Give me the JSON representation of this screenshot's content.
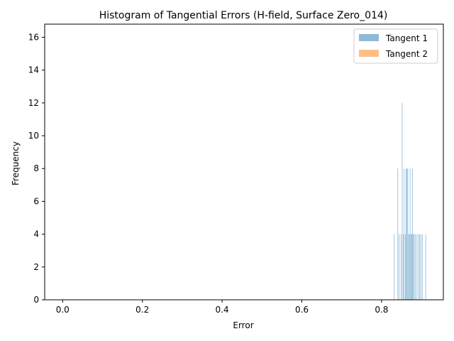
{
  "chart_data": {
    "type": "bar",
    "title": "Histogram of Tangential Errors (H-field, Surface Zero_014)",
    "xlabel": "Error",
    "ylabel": "Frequency",
    "xlim": [
      -0.045,
      0.955
    ],
    "ylim": [
      0,
      16.8
    ],
    "xticks": [
      "0.0",
      "0.2",
      "0.4",
      "0.6",
      "0.8"
    ],
    "yticks": [
      "0",
      "2",
      "4",
      "6",
      "8",
      "10",
      "12",
      "14",
      "16"
    ],
    "grid": false,
    "legend_position": "top-right",
    "bin_width": 0.0015,
    "series": [
      {
        "name": "Tangent 1",
        "color": "#1f77b4",
        "opacity": 0.5,
        "bins": [
          {
            "x": 0.831,
            "count": 4
          },
          {
            "x": 0.84,
            "count": 8
          },
          {
            "x": 0.843,
            "count": 4
          },
          {
            "x": 0.848,
            "count": 4
          },
          {
            "x": 0.851,
            "count": 12
          },
          {
            "x": 0.854,
            "count": 4
          },
          {
            "x": 0.856,
            "count": 8
          },
          {
            "x": 0.859,
            "count": 4
          },
          {
            "x": 0.861,
            "count": 8
          },
          {
            "x": 0.863,
            "count": 8
          },
          {
            "x": 0.865,
            "count": 8
          },
          {
            "x": 0.867,
            "count": 4
          },
          {
            "x": 0.869,
            "count": 4
          },
          {
            "x": 0.871,
            "count": 8
          },
          {
            "x": 0.873,
            "count": 4
          },
          {
            "x": 0.875,
            "count": 4
          },
          {
            "x": 0.877,
            "count": 8
          },
          {
            "x": 0.879,
            "count": 4
          },
          {
            "x": 0.881,
            "count": 4
          },
          {
            "x": 0.884,
            "count": 4
          },
          {
            "x": 0.888,
            "count": 4
          },
          {
            "x": 0.892,
            "count": 4
          },
          {
            "x": 0.895,
            "count": 4
          },
          {
            "x": 0.898,
            "count": 4
          },
          {
            "x": 0.902,
            "count": 4
          },
          {
            "x": 0.91,
            "count": 4
          }
        ]
      },
      {
        "name": "Tangent 2",
        "color": "#ff7f0e",
        "opacity": 0.5,
        "bins": [
          {
            "x": 0.0,
            "count": 0
          }
        ]
      }
    ]
  }
}
